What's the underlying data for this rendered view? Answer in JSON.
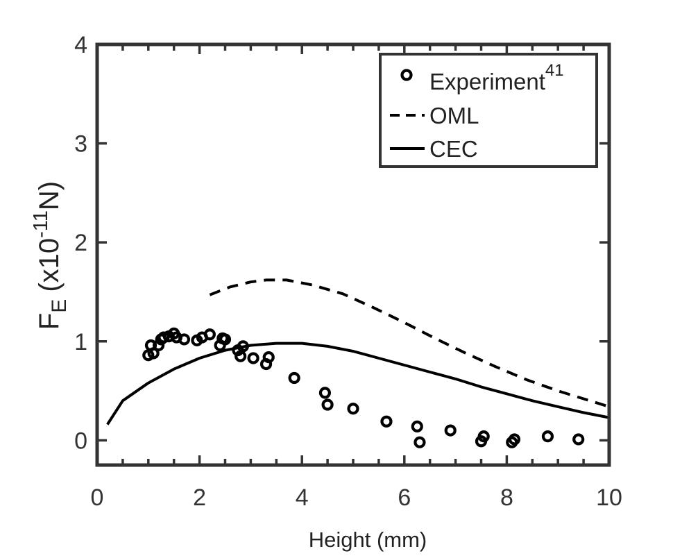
{
  "chart_data": {
    "type": "scatter",
    "title": "",
    "xlabel": "Height (mm)",
    "ylabel": {
      "base": "F",
      "subscript": "E",
      "open": "(x10",
      "exponent": "-11",
      "unit": "N)"
    },
    "xlim": [
      0,
      10
    ],
    "ylim": [
      -0.25,
      4
    ],
    "x_ticks": [
      "0",
      "2",
      "4",
      "6",
      "8",
      "10"
    ],
    "y_ticks": [
      "0",
      "1",
      "2",
      "3",
      "4"
    ],
    "legend_position": "top-right",
    "series": [
      {
        "name": "Experiment",
        "name_superscript": "41",
        "style": "markers-open-circle",
        "x": [
          1.0,
          1.05,
          1.1,
          1.2,
          1.25,
          1.3,
          1.4,
          1.5,
          1.55,
          1.7,
          1.95,
          2.05,
          2.2,
          2.4,
          2.45,
          2.5,
          2.75,
          2.8,
          2.85,
          3.05,
          3.3,
          3.35,
          3.85,
          4.45,
          4.5,
          5.0,
          5.65,
          6.25,
          6.3,
          6.9,
          7.5,
          7.55,
          8.1,
          8.15,
          8.8,
          9.4
        ],
        "y": [
          0.86,
          0.96,
          0.88,
          0.96,
          1.02,
          1.04,
          1.05,
          1.08,
          1.04,
          1.02,
          1.01,
          1.04,
          1.07,
          0.96,
          1.03,
          1.02,
          0.91,
          0.85,
          0.95,
          0.83,
          0.77,
          0.84,
          0.63,
          0.48,
          0.36,
          0.32,
          0.19,
          0.14,
          -0.02,
          0.1,
          -0.01,
          0.04,
          -0.02,
          0.01,
          0.04,
          0.01
        ]
      },
      {
        "name": "OML",
        "style": "dashed-line",
        "x": [
          2.2,
          2.6,
          3.0,
          3.3,
          3.7,
          4.2,
          4.8,
          5.4,
          6.0,
          6.6,
          7.2,
          7.8,
          8.4,
          9.0,
          9.5,
          10.0
        ],
        "y": [
          1.47,
          1.55,
          1.6,
          1.62,
          1.62,
          1.57,
          1.48,
          1.34,
          1.19,
          1.03,
          0.88,
          0.74,
          0.61,
          0.5,
          0.42,
          0.34
        ]
      },
      {
        "name": "CEC",
        "style": "solid-line",
        "x": [
          0.2,
          0.5,
          1.0,
          1.5,
          2.0,
          2.5,
          3.0,
          3.5,
          4.0,
          4.5,
          5.0,
          5.5,
          6.0,
          6.5,
          7.0,
          7.5,
          8.0,
          8.5,
          9.0,
          9.5,
          10.0
        ],
        "y": [
          0.16,
          0.4,
          0.58,
          0.72,
          0.83,
          0.91,
          0.96,
          0.98,
          0.98,
          0.95,
          0.9,
          0.83,
          0.76,
          0.69,
          0.62,
          0.54,
          0.47,
          0.4,
          0.34,
          0.28,
          0.23
        ]
      }
    ]
  }
}
